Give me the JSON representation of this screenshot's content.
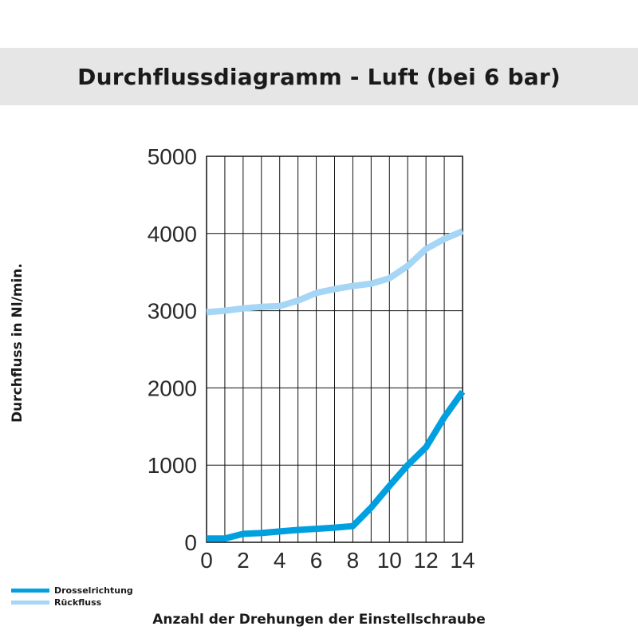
{
  "chart_data": {
    "type": "line",
    "title": "Durchflussdiagramm - Luft (bei 6 bar)",
    "xlabel": "Anzahl der Drehungen der Einstellschraube",
    "ylabel": "Durchfluss in Nl/min.",
    "xlim": [
      0,
      14
    ],
    "ylim": [
      0,
      5000
    ],
    "x_ticks": [
      0,
      2,
      4,
      6,
      8,
      10,
      12,
      14
    ],
    "y_ticks": [
      0,
      1000,
      2000,
      3000,
      4000,
      5000
    ],
    "grid": true,
    "legend_position": "bottom-left",
    "series": [
      {
        "name": "Drosselrichtung",
        "color": "#00a0e0",
        "x": [
          0,
          1,
          2,
          3,
          4,
          5,
          6,
          7,
          8,
          9,
          10,
          11,
          12,
          13,
          14
        ],
        "y": [
          50,
          50,
          110,
          120,
          140,
          160,
          175,
          190,
          210,
          450,
          730,
          1000,
          1230,
          1620,
          1950
        ]
      },
      {
        "name": "Rückfluss",
        "color": "#a5d6f5",
        "x": [
          0,
          1,
          2,
          3,
          4,
          5,
          6,
          7,
          8,
          9,
          10,
          11,
          12,
          13,
          14
        ],
        "y": [
          2980,
          3000,
          3030,
          3050,
          3060,
          3130,
          3230,
          3280,
          3320,
          3350,
          3420,
          3580,
          3800,
          3930,
          4030
        ]
      }
    ]
  }
}
